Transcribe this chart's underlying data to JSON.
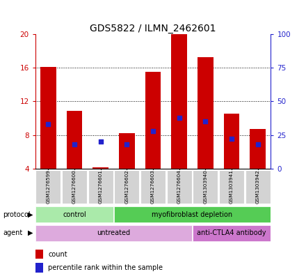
{
  "title": "GDS5822 / ILMN_2462601",
  "samples": [
    "GSM1276599",
    "GSM1276600",
    "GSM1276601",
    "GSM1276602",
    "GSM1276603",
    "GSM1276604",
    "GSM1303940",
    "GSM1303941",
    "GSM1303942"
  ],
  "counts": [
    16.1,
    10.9,
    4.15,
    8.2,
    15.5,
    20.0,
    17.3,
    10.5,
    8.7
  ],
  "percentile_ranks_pct": [
    33,
    18,
    20,
    18,
    28,
    38,
    35,
    22,
    18
  ],
  "ymin": 4,
  "ymax": 20,
  "yticks_left": [
    4,
    8,
    12,
    16,
    20
  ],
  "yticks_right": [
    0,
    25,
    50,
    75,
    100
  ],
  "bar_color": "#cc0000",
  "dot_color": "#2222cc",
  "protocol_groups": [
    {
      "label": "control",
      "start": 0,
      "end": 3,
      "color": "#aaeaaa"
    },
    {
      "label": "myofibroblast depletion",
      "start": 3,
      "end": 9,
      "color": "#55cc55"
    }
  ],
  "agent_groups": [
    {
      "label": "untreated",
      "start": 0,
      "end": 6,
      "color": "#ddaadd"
    },
    {
      "label": "anti-CTLA4 antibody",
      "start": 6,
      "end": 9,
      "color": "#cc77cc"
    }
  ],
  "legend_items": [
    {
      "label": "count",
      "color": "#cc0000"
    },
    {
      "label": "percentile rank within the sample",
      "color": "#2222cc"
    }
  ],
  "title_fontsize": 10,
  "axis_label_color_left": "#cc0000",
  "axis_label_color_right": "#2222cc",
  "background_color": "#ffffff",
  "plot_bg_color": "#ffffff",
  "grid_color": "#000000"
}
